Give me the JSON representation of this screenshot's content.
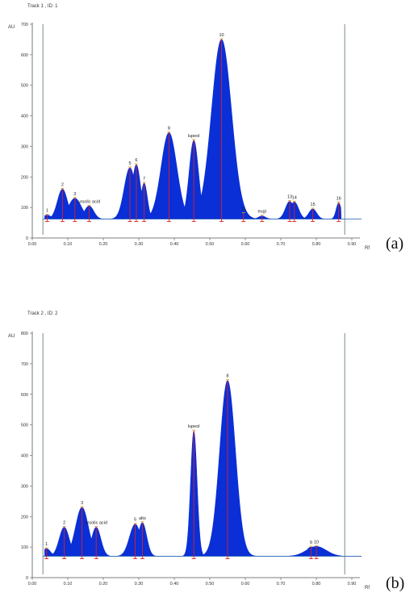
{
  "figures": [
    {
      "title": "Track 1 , ID: 1",
      "label": "(a)"
    },
    {
      "title": "Track 2 , ID: 2",
      "label": "(b)"
    }
  ],
  "chart_data": [
    {
      "type": "area",
      "title": "Track 1 , ID: 1",
      "xlabel": "Rf",
      "ylabel": "AU",
      "xlim": [
        0.0,
        0.9
      ],
      "ylim": [
        0,
        700
      ],
      "x_ticks": [
        "0.00",
        "0.10",
        "0.20",
        "0.30",
        "0.40",
        "0.50",
        "0.60",
        "0.70",
        "0.80",
        "0.90"
      ],
      "y_ticks": [
        0,
        100,
        200,
        300,
        400,
        500,
        600,
        700
      ],
      "baseline": 62,
      "start_line": 0.03,
      "front_line": 0.88,
      "grid": false,
      "color": "#0a2fd6",
      "peaks": [
        {
          "label": "1",
          "x": 0.042,
          "y": 75
        },
        {
          "label": "2",
          "x": 0.085,
          "y": 160
        },
        {
          "label": "3",
          "x": 0.12,
          "y": 130
        },
        {
          "label": "ursolic acid",
          "x": 0.16,
          "y": 105
        },
        {
          "label": "5",
          "x": 0.275,
          "y": 230
        },
        {
          "label": "6",
          "x": 0.293,
          "y": 240
        },
        {
          "label": "7",
          "x": 0.315,
          "y": 180
        },
        {
          "label": "8",
          "x": 0.385,
          "y": 345
        },
        {
          "label": "lupeol",
          "x": 0.455,
          "y": 320
        },
        {
          "label": "10",
          "x": 0.533,
          "y": 650
        },
        {
          "label": "11",
          "x": 0.595,
          "y": 80
        },
        {
          "label": "eugi",
          "x": 0.647,
          "y": 72
        },
        {
          "label": "13",
          "x": 0.725,
          "y": 120
        },
        {
          "label": "14",
          "x": 0.738,
          "y": 118
        },
        {
          "label": "15",
          "x": 0.79,
          "y": 95
        },
        {
          "label": "16",
          "x": 0.863,
          "y": 115
        }
      ]
    },
    {
      "type": "area",
      "title": "Track 2 , ID: 2",
      "xlabel": "Rf",
      "ylabel": "AU",
      "xlim": [
        0.0,
        0.9
      ],
      "ylim": [
        0,
        800
      ],
      "x_ticks": [
        "0.00",
        "0.10",
        "0.20",
        "0.30",
        "0.40",
        "0.50",
        "0.60",
        "0.70",
        "0.80",
        "0.90"
      ],
      "y_ticks": [
        0,
        100,
        200,
        300,
        400,
        500,
        600,
        700,
        800
      ],
      "baseline": 70,
      "start_line": 0.03,
      "front_line": 0.88,
      "grid": false,
      "color": "#0a2fd6",
      "peaks": [
        {
          "label": "1",
          "x": 0.04,
          "y": 95
        },
        {
          "label": "2",
          "x": 0.09,
          "y": 165
        },
        {
          "label": "3",
          "x": 0.14,
          "y": 230
        },
        {
          "label": "ursolic acid",
          "x": 0.18,
          "y": 165
        },
        {
          "label": "5",
          "x": 0.29,
          "y": 175
        },
        {
          "label": "alto",
          "x": 0.31,
          "y": 180
        },
        {
          "label": "lupeol",
          "x": 0.455,
          "y": 480
        },
        {
          "label": "8",
          "x": 0.55,
          "y": 645
        },
        {
          "label": "9",
          "x": 0.785,
          "y": 100
        },
        {
          "label": "10",
          "x": 0.8,
          "y": 102
        }
      ]
    }
  ]
}
